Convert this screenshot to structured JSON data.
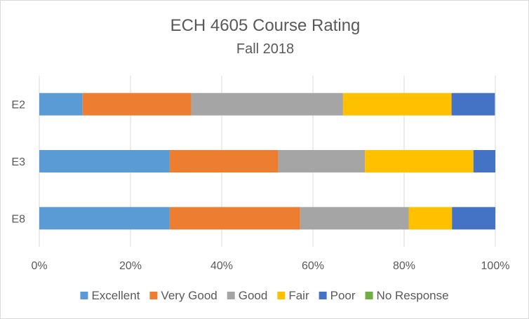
{
  "chart_data": {
    "type": "bar",
    "orientation": "horizontal",
    "stacked": "percent",
    "title": "ECH 4605 Course Rating",
    "subtitle": "Fall 2018",
    "categories": [
      "E2",
      "E3",
      "E8"
    ],
    "series": [
      {
        "name": "Excellent",
        "color": "#5b9bd5",
        "values": [
          9.5,
          28.6,
          28.6
        ]
      },
      {
        "name": "Very Good",
        "color": "#ed7d31",
        "values": [
          23.8,
          23.8,
          28.6
        ]
      },
      {
        "name": "Good",
        "color": "#a5a5a5",
        "values": [
          33.3,
          19.0,
          23.8
        ]
      },
      {
        "name": "Fair",
        "color": "#ffc000",
        "values": [
          23.8,
          23.8,
          9.5
        ]
      },
      {
        "name": "Poor",
        "color": "#4472c4",
        "values": [
          9.5,
          4.8,
          9.5
        ]
      },
      {
        "name": "No Response",
        "color": "#70ad47",
        "values": [
          0,
          0,
          0
        ]
      }
    ],
    "x_ticks": [
      "0%",
      "20%",
      "40%",
      "60%",
      "80%",
      "100%"
    ],
    "xlim": [
      0,
      100
    ],
    "grid": true,
    "legend": "bottom"
  }
}
